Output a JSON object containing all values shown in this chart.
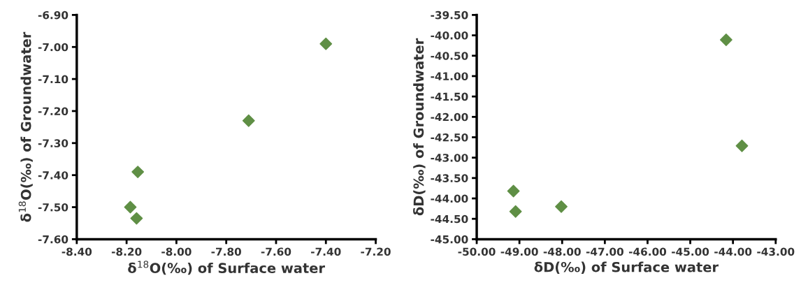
{
  "chart_data": [
    {
      "type": "scatter",
      "xlabel": "δ$^{18}$O(‰) of Surface water",
      "ylabel": "δ$^{18}$O(‰) of Groundwater",
      "marker": "diamond",
      "grid": false,
      "x": [
        -7.4,
        -7.71,
        -8.155,
        -8.185,
        -8.16
      ],
      "series": [
        {
          "color": "#5f8f45",
          "values": [
            -6.99,
            -7.23,
            -7.39,
            -7.5,
            -7.535
          ]
        }
      ],
      "xlim": [
        -8.4,
        -7.2
      ],
      "xticks": [
        {
          "value": -8.4,
          "label": "-8.40"
        },
        {
          "value": -8.2,
          "label": "-8.20"
        },
        {
          "value": -8.0,
          "label": "-8.00"
        },
        {
          "value": -7.8,
          "label": "-7.80"
        },
        {
          "value": -7.6,
          "label": "-7.60"
        },
        {
          "value": -7.4,
          "label": "-7.40"
        },
        {
          "value": -7.2,
          "label": "-7.20"
        }
      ],
      "ylim": [
        -7.6,
        -6.9
      ],
      "yticks": [
        {
          "value": -7.6,
          "label": "-7.60"
        },
        {
          "value": -7.5,
          "label": "-7.50"
        },
        {
          "value": -7.4,
          "label": "-7.40"
        },
        {
          "value": -7.3,
          "label": "-7.30"
        },
        {
          "value": -7.2,
          "label": "-7.20"
        },
        {
          "value": -7.1,
          "label": "-7.10"
        },
        {
          "value": -7.0,
          "label": "-7.00"
        },
        {
          "value": -6.9,
          "label": "-6.90"
        }
      ]
    },
    {
      "type": "scatter",
      "xlabel": "δD(‰) of Surface water",
      "ylabel": "δD(‰) of Groundwater",
      "marker": "diamond",
      "grid": false,
      "x": [
        -44.16,
        -43.79,
        -49.14,
        -49.09,
        -48.02
      ],
      "series": [
        {
          "color": "#5f8f45",
          "values": [
            -40.11,
            -42.71,
            -43.82,
            -44.32,
            -44.2
          ]
        }
      ],
      "xlim": [
        -50.0,
        -43.0
      ],
      "xticks": [
        {
          "value": -50,
          "label": "-50.00"
        },
        {
          "value": -49,
          "label": "-49.00"
        },
        {
          "value": -48,
          "label": "-48.00"
        },
        {
          "value": -47,
          "label": "-47.00"
        },
        {
          "value": -46,
          "label": "-46.00"
        },
        {
          "value": -45,
          "label": "-45.00"
        },
        {
          "value": -44,
          "label": "-44.00"
        },
        {
          "value": -43,
          "label": "-43.00"
        }
      ],
      "ylim": [
        -45.0,
        -39.5
      ],
      "yticks": [
        {
          "value": -45,
          "label": "-45.00"
        },
        {
          "value": -44.5,
          "label": "-44.50"
        },
        {
          "value": -44,
          "label": "-44.00"
        },
        {
          "value": -43.5,
          "label": "-43.50"
        },
        {
          "value": -43,
          "label": "-43.00"
        },
        {
          "value": -42.5,
          "label": "-42.50"
        },
        {
          "value": -42,
          "label": "-42.00"
        },
        {
          "value": -41.5,
          "label": "-41.50"
        },
        {
          "value": -41,
          "label": "-41.00"
        },
        {
          "value": -40.5,
          "label": "-40.50"
        },
        {
          "value": -40,
          "label": "-40.00"
        },
        {
          "value": -39.5,
          "label": "-39.50"
        }
      ]
    }
  ]
}
